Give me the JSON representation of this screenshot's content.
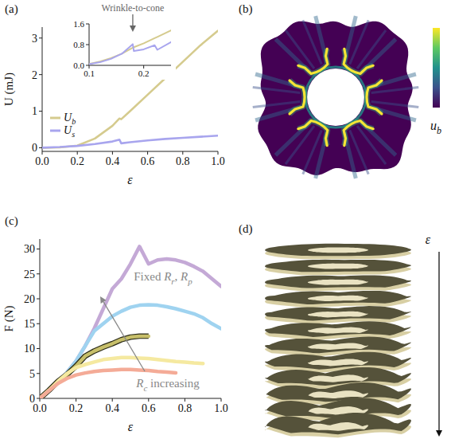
{
  "chart_data": [
    {
      "type": "line",
      "label": "(a)",
      "x_label": "ε",
      "y_label": "U (mJ)",
      "x": [
        0,
        0.1,
        0.2,
        0.3,
        0.4,
        0.44,
        0.45,
        0.5,
        0.6,
        0.7,
        0.8,
        0.9,
        1.0
      ],
      "series": [
        {
          "name": "Ub",
          "color": "#d5cb8e",
          "values": [
            0,
            0.01,
            0.06,
            0.25,
            0.6,
            0.8,
            0.78,
            1.0,
            1.45,
            1.9,
            2.35,
            2.8,
            3.2
          ]
        },
        {
          "name": "Us",
          "color": "#a8a5ee",
          "values": [
            0,
            0.02,
            0.05,
            0.1,
            0.17,
            0.22,
            0.12,
            0.15,
            0.2,
            0.24,
            0.27,
            0.3,
            0.33
          ]
        }
      ],
      "xlim": [
        0,
        1
      ],
      "ylim": [
        -0.1,
        3.3
      ],
      "xticks": [
        {
          "value": 0,
          "label": "0.0"
        },
        {
          "value": 0.2,
          "label": "0.2"
        },
        {
          "value": 0.4,
          "label": "0.4"
        },
        {
          "value": 0.6,
          "label": "0.6"
        },
        {
          "value": 0.8,
          "label": "0.8"
        },
        {
          "value": 1,
          "label": "1.0"
        }
      ],
      "yticks": [
        0,
        1,
        2,
        3
      ],
      "legend": "lower left",
      "grid": false
    },
    {
      "type": "line",
      "x": [
        0.1,
        0.12,
        0.14,
        0.16,
        0.18,
        0.182,
        0.2,
        0.22,
        0.225,
        0.25
      ],
      "series": [
        {
          "color": "#d5cb8e",
          "values": [
            0.05,
            0.15,
            0.28,
            0.45,
            0.68,
            0.7,
            0.85,
            1.05,
            1.1,
            1.35
          ]
        },
        {
          "color": "#a8a5ee",
          "values": [
            0.05,
            0.12,
            0.25,
            0.45,
            0.82,
            0.55,
            0.62,
            0.78,
            0.6,
            0.9
          ]
        }
      ],
      "xlim": [
        0.1,
        0.25
      ],
      "ylim": [
        0,
        1.6
      ],
      "xticks": [
        0.1,
        0.2
      ],
      "yticks": [
        {
          "value": 0,
          "label": "0.0"
        },
        0.8,
        1.6
      ],
      "annotations": [
        {
          "text": "Wrinkle-to-cone",
          "x": 0.18
        }
      ],
      "grid": false
    },
    {
      "type": "image",
      "label": "(b)",
      "colorbar_label": "ub"
    },
    {
      "type": "line",
      "label": "(c)",
      "x_label": "ε",
      "y_label": "F (N)",
      "x": [
        0,
        0.05,
        0.1,
        0.15,
        0.2,
        0.25,
        0.3,
        0.35,
        0.4,
        0.45,
        0.5,
        0.55,
        0.6,
        0.65,
        0.7,
        0.75,
        0.8,
        0.85,
        0.9,
        0.95,
        1.0
      ],
      "series": [
        {
          "color": "#c4a9d6",
          "values": [
            0,
            1.6,
            3.4,
            5.2,
            7.5,
            10.5,
            14,
            18,
            22,
            24,
            27,
            30.5,
            27,
            27.8,
            28,
            27.8,
            27.3,
            26.5,
            25.5,
            24,
            22.5
          ]
        },
        {
          "color": "#9fd3f0",
          "values": [
            0,
            1.6,
            3.4,
            5.2,
            7.5,
            10.5,
            13.5,
            15,
            16.5,
            17.5,
            18.3,
            18.7,
            18.8,
            18.7,
            18.4,
            18,
            17.5,
            17,
            16.2,
            15,
            14
          ]
        },
        {
          "color": "#c7bf6a",
          "line_style": "outlined",
          "values": [
            0,
            1.6,
            3.4,
            4.8,
            6.5,
            8.5,
            9.5,
            10.3,
            11,
            11.8,
            12.3,
            12.5,
            12.5,
            null,
            null,
            null,
            null,
            null,
            null,
            null,
            null
          ]
        },
        {
          "color": "#f5e9a0",
          "values": [
            0,
            1.6,
            3.4,
            5,
            6.2,
            6.8,
            7.3,
            7.8,
            8,
            8.2,
            8.2,
            8.1,
            8,
            7.8,
            7.6,
            7.4,
            7.3,
            7.1,
            7,
            null,
            null
          ]
        },
        {
          "color": "#f4ab97",
          "values": [
            0,
            1.5,
            3,
            4,
            4.7,
            5.1,
            5.4,
            5.6,
            5.7,
            5.8,
            5.8,
            5.7,
            5.6,
            5.4,
            5.3,
            5.1,
            null,
            null,
            null,
            null,
            null
          ]
        }
      ],
      "xlim": [
        0,
        1
      ],
      "ylim": [
        0,
        32
      ],
      "xticks": [
        {
          "value": 0,
          "label": "0.0"
        },
        {
          "value": 0.2,
          "label": "0.2"
        },
        {
          "value": 0.4,
          "label": "0.4"
        },
        {
          "value": 0.6,
          "label": "0.6"
        },
        {
          "value": 0.8,
          "label": "0.8"
        },
        {
          "value": 1,
          "label": "1.0"
        }
      ],
      "yticks": [
        0,
        5,
        10,
        15,
        20,
        25,
        30
      ],
      "annotations": [
        {
          "text": "Fixed Rr, Rp"
        },
        {
          "text": "Rc increasing"
        }
      ],
      "grid": false
    },
    {
      "type": "image",
      "label": "(d)",
      "axis_label": "ε"
    }
  ]
}
